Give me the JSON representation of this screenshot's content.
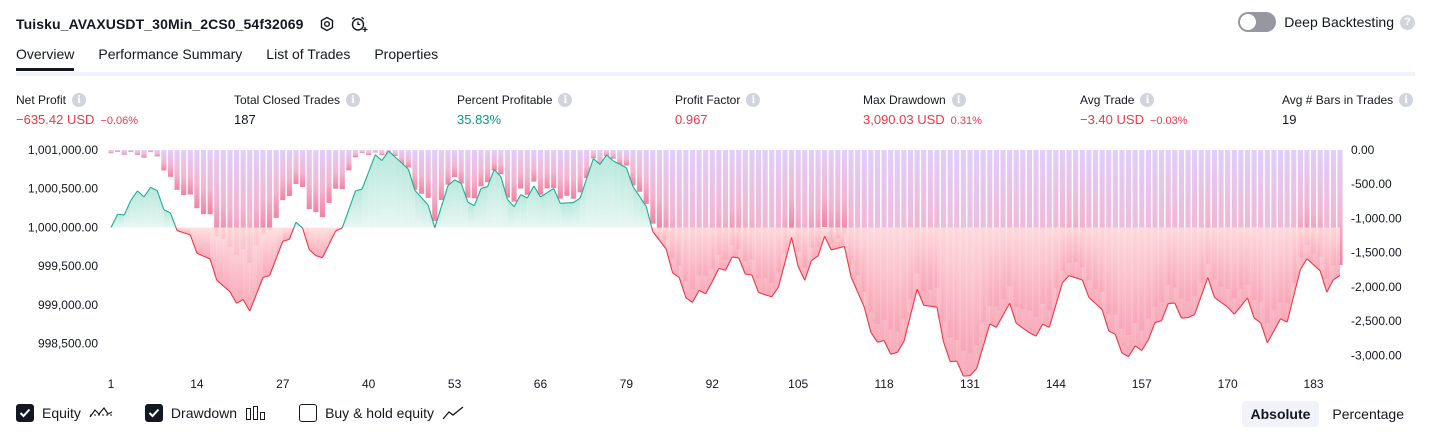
{
  "header": {
    "strategy_name": "Tuisku_AVAXUSDT_30Min_2CS0_54f32069",
    "deep_backtesting_label": "Deep Backtesting",
    "deep_backtesting_on": false
  },
  "tabs": [
    {
      "label": "Overview",
      "active": true
    },
    {
      "label": "Performance Summary",
      "active": false
    },
    {
      "label": "List of Trades",
      "active": false
    },
    {
      "label": "Properties",
      "active": false
    }
  ],
  "metrics": {
    "net_profit": {
      "label": "Net Profit",
      "value": "−635.42 USD",
      "sub": "−0.06%"
    },
    "total_closed_trades": {
      "label": "Total Closed Trades",
      "value": "187"
    },
    "percent_profitable": {
      "label": "Percent Profitable",
      "value": "35.83%"
    },
    "profit_factor": {
      "label": "Profit Factor",
      "value": "0.967"
    },
    "max_drawdown": {
      "label": "Max Drawdown",
      "value": "3,090.03 USD",
      "sub": "0.31%"
    },
    "avg_trade": {
      "label": "Avg Trade",
      "value": "−3.40 USD",
      "sub": "−0.03%"
    },
    "avg_bars": {
      "label": "Avg # Bars in Trades",
      "value": "19"
    }
  },
  "chart_data": {
    "type": "area",
    "left_axis": {
      "ticks": [
        "1,001,000.00",
        "1,000,500.00",
        "1,000,000.00",
        "999,500.00",
        "999,000.00",
        "998,500.00"
      ],
      "range": [
        998250,
        1001000
      ]
    },
    "right_axis": {
      "ticks": [
        "0.00",
        "-500.00",
        "-1,000.00",
        "-1,500.00",
        "-2,000.00",
        "-2,500.00",
        "-3,000.00"
      ],
      "range": [
        -3110,
        0
      ]
    },
    "x_ticks": [
      "1",
      "14",
      "27",
      "40",
      "53",
      "66",
      "79",
      "92",
      "105",
      "118",
      "131",
      "144",
      "157",
      "170",
      "183"
    ],
    "trade_count": 187,
    "equity_baseline": 1000000,
    "equity_keypoints": [
      [
        1,
        1000000
      ],
      [
        4,
        1000350
      ],
      [
        7,
        1000500
      ],
      [
        10,
        1000150
      ],
      [
        13,
        999850
      ],
      [
        16,
        999520
      ],
      [
        19,
        999080
      ],
      [
        22,
        999010
      ],
      [
        24,
        999300
      ],
      [
        27,
        999750
      ],
      [
        29,
        1000050
      ],
      [
        32,
        999600
      ],
      [
        35,
        999900
      ],
      [
        38,
        1000400
      ],
      [
        41,
        1000850
      ],
      [
        44,
        1001000
      ],
      [
        47,
        1000550
      ],
      [
        50,
        1000050
      ],
      [
        53,
        1000650
      ],
      [
        56,
        1000300
      ],
      [
        59,
        1000750
      ],
      [
        62,
        1000250
      ],
      [
        65,
        1000500
      ],
      [
        68,
        1000450
      ],
      [
        71,
        1000250
      ],
      [
        74,
        1000800
      ],
      [
        77,
        1000950
      ],
      [
        80,
        1000600
      ],
      [
        83,
        1000000
      ],
      [
        86,
        999450
      ],
      [
        89,
        999050
      ],
      [
        92,
        999300
      ],
      [
        95,
        999600
      ],
      [
        98,
        999350
      ],
      [
        101,
        999050
      ],
      [
        104,
        999800
      ],
      [
        106,
        999300
      ],
      [
        109,
        999850
      ],
      [
        112,
        999700
      ],
      [
        115,
        998900
      ],
      [
        117,
        998500
      ],
      [
        120,
        998350
      ],
      [
        123,
        999150
      ],
      [
        126,
        998900
      ],
      [
        128,
        998250
      ],
      [
        131,
        998050
      ],
      [
        134,
        998700
      ],
      [
        137,
        998950
      ],
      [
        140,
        998550
      ],
      [
        143,
        998800
      ],
      [
        146,
        999450
      ],
      [
        149,
        999150
      ],
      [
        152,
        998700
      ],
      [
        155,
        998350
      ],
      [
        158,
        998550
      ],
      [
        161,
        999000
      ],
      [
        164,
        998800
      ],
      [
        167,
        999300
      ],
      [
        170,
        998900
      ],
      [
        173,
        999000
      ],
      [
        176,
        998600
      ],
      [
        179,
        998850
      ],
      [
        182,
        999650
      ],
      [
        185,
        999200
      ],
      [
        187,
        999380
      ]
    ],
    "series": [
      {
        "name": "Equity",
        "color": "#22ab94"
      },
      {
        "name": "Drawdown",
        "color": "#c9a8fb"
      }
    ]
  },
  "footer": {
    "equity_label": "Equity",
    "equity_checked": true,
    "drawdown_label": "Drawdown",
    "drawdown_checked": true,
    "buyhold_label": "Buy & hold equity",
    "buyhold_checked": false,
    "absolute_label": "Absolute",
    "percentage_label": "Percentage",
    "selected_mode": "Absolute"
  },
  "colors": {
    "negative": "#f23645",
    "positive": "#089981",
    "equity_line": "#22ab94",
    "loss_line": "#f23645",
    "drawdown_bar": "#c9a8fb"
  }
}
